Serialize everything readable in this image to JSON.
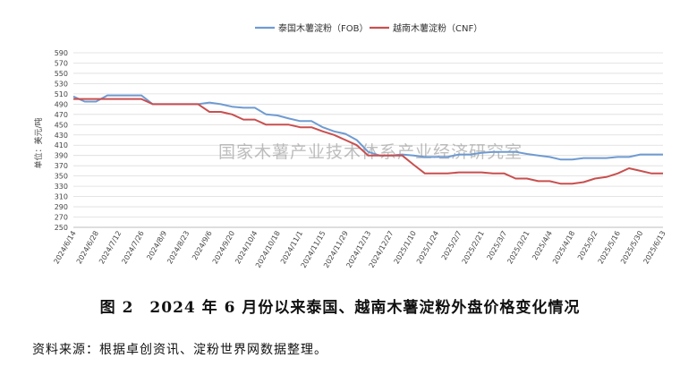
{
  "chart_data": {
    "type": "line",
    "ylabel": "单位：美元/吨",
    "ylim": [
      250,
      590
    ],
    "ytick_step": 20,
    "grid": true,
    "legend_position": "top",
    "watermark": "国家木薯产业技术体系产业经济研究室",
    "x": [
      "2024/6/14",
      "2024/6/21",
      "2024/6/28",
      "2024/7/5",
      "2024/7/12",
      "2024/7/19",
      "2024/7/26",
      "2024/8/2",
      "2024/8/9",
      "2024/8/16",
      "2024/8/23",
      "2024/8/30",
      "2024/9/6",
      "2024/9/13",
      "2024/9/20",
      "2024/9/27",
      "2024/10/4",
      "2024/10/11",
      "2024/10/18",
      "2024/10/25",
      "2024/11/1",
      "2024/11/8",
      "2024/11/15",
      "2024/11/22",
      "2024/11/29",
      "2024/12/6",
      "2024/12/13",
      "2024/12/20",
      "2024/12/27",
      "2025/1/3",
      "2025/1/10",
      "2025/1/17",
      "2025/1/24",
      "2025/1/31",
      "2025/2/7",
      "2025/2/14",
      "2025/2/21",
      "2025/2/28",
      "2025/3/7",
      "2025/3/14",
      "2025/3/21",
      "2025/3/28",
      "2025/4/4",
      "2025/4/11",
      "2025/4/18",
      "2025/4/25",
      "2025/5/2",
      "2025/5/9",
      "2025/5/16",
      "2025/5/23",
      "2025/5/30",
      "2025/6/6",
      "2025/6/13"
    ],
    "x_tick_labels": [
      "2024/6/14",
      "2024/6/28",
      "2024/7/12",
      "2024/7/26",
      "2024/8/9",
      "2024/8/23",
      "2024/9/6",
      "2024/9/20",
      "2024/10/4",
      "2024/10/18",
      "2024/11/1",
      "2024/11/15",
      "2024/11/29",
      "2024/12/13",
      "2024/12/27",
      "2025/1/10",
      "2025/1/24",
      "2025/2/7",
      "2025/2/21",
      "2025/3/7",
      "2025/3/21",
      "2025/4/4",
      "2025/4/18",
      "2025/5/2",
      "2025/5/16",
      "2025/5/30",
      "2025/6/13"
    ],
    "series": [
      {
        "name": "泰国木薯淀粉（FOB）",
        "color": "#6f9bd1",
        "values": [
          505,
          495,
          495,
          507,
          507,
          507,
          507,
          490,
          490,
          490,
          490,
          490,
          493,
          490,
          485,
          483,
          483,
          470,
          468,
          462,
          457,
          457,
          445,
          437,
          432,
          420,
          397,
          390,
          390,
          392,
          390,
          387,
          387,
          387,
          392,
          392,
          395,
          397,
          397,
          397,
          393,
          390,
          387,
          382,
          382,
          385,
          385,
          385,
          387,
          387,
          392,
          392,
          392
        ]
      },
      {
        "name": "越南木薯淀粉（CNF）",
        "color": "#c94f4f",
        "values": [
          500,
          500,
          500,
          500,
          500,
          500,
          500,
          490,
          490,
          490,
          490,
          490,
          475,
          475,
          470,
          460,
          460,
          450,
          450,
          450,
          445,
          445,
          437,
          430,
          420,
          410,
          390,
          390,
          390,
          390,
          372,
          355,
          355,
          355,
          357,
          357,
          357,
          355,
          355,
          345,
          345,
          340,
          340,
          335,
          335,
          338,
          345,
          348,
          355,
          365,
          360,
          355,
          355
        ]
      }
    ]
  },
  "caption": "图 2　2024 年 6 月份以来泰国、越南木薯淀粉外盘价格变化情况",
  "source": "资料来源：根据卓创资讯、淀粉世界网数据整理。"
}
